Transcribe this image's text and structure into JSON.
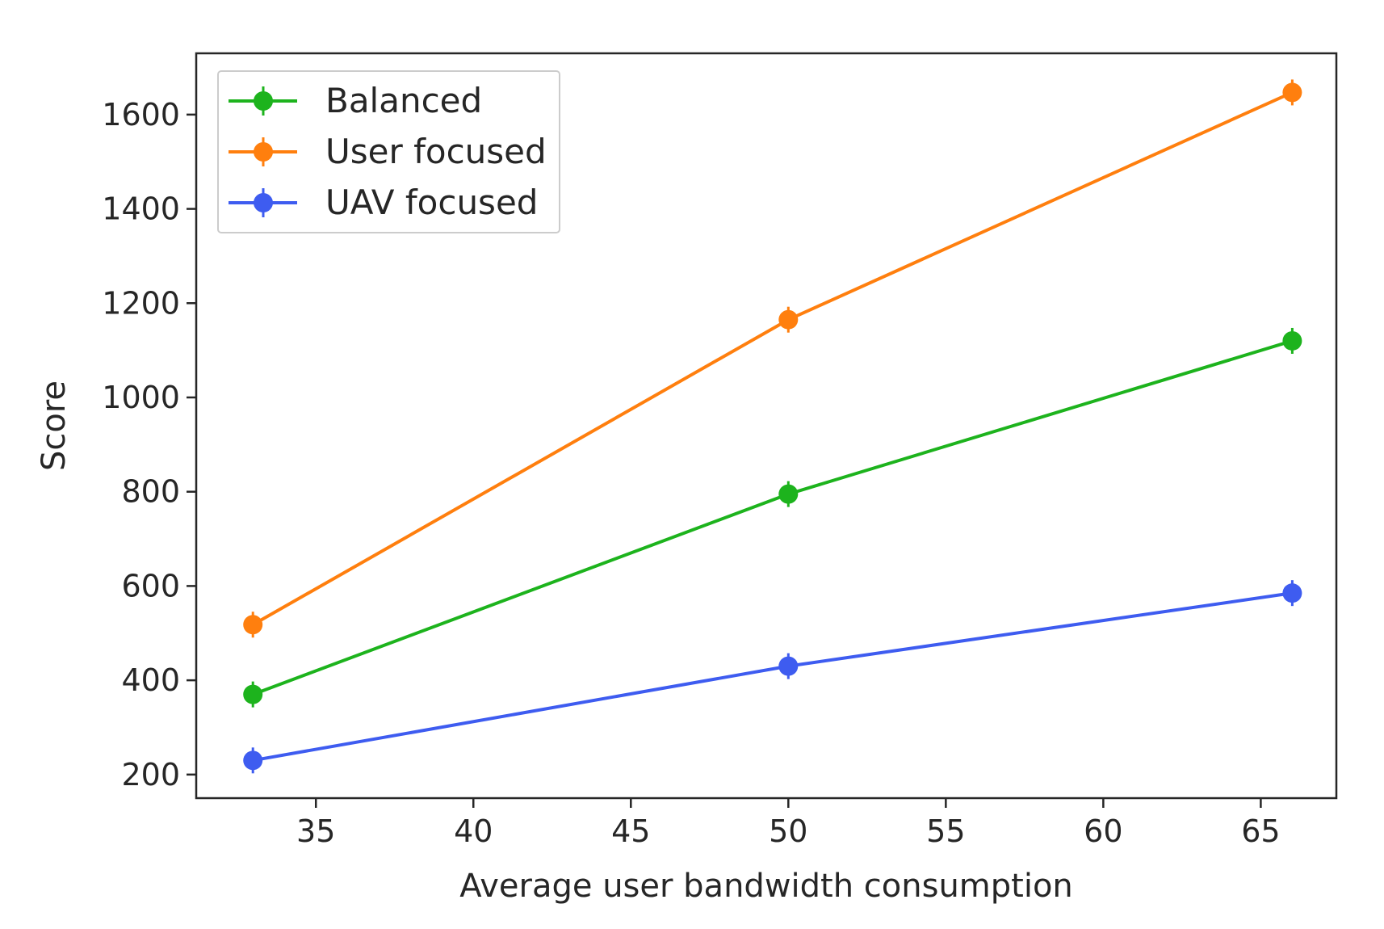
{
  "chart_data": {
    "type": "line",
    "title": "",
    "xlabel": "Average user bandwidth consumption",
    "ylabel": "Score",
    "xlim": [
      31.2,
      67.4
    ],
    "ylim": [
      150,
      1730
    ],
    "x_ticks": [
      35,
      40,
      45,
      50,
      55,
      60,
      65
    ],
    "y_ticks": [
      200,
      400,
      600,
      800,
      1000,
      1200,
      1400,
      1600
    ],
    "grid": false,
    "legend_position": "top-left",
    "x": [
      33,
      50,
      66
    ],
    "series": [
      {
        "name": "Balanced",
        "color": "#1db31d",
        "values": [
          370,
          795,
          1120
        ]
      },
      {
        "name": "User focused",
        "color": "#ff7f0e",
        "values": [
          518,
          1165,
          1647
        ]
      },
      {
        "name": "UAV focused",
        "color": "#3e5cf0",
        "values": [
          230,
          430,
          585
        ]
      }
    ]
  }
}
